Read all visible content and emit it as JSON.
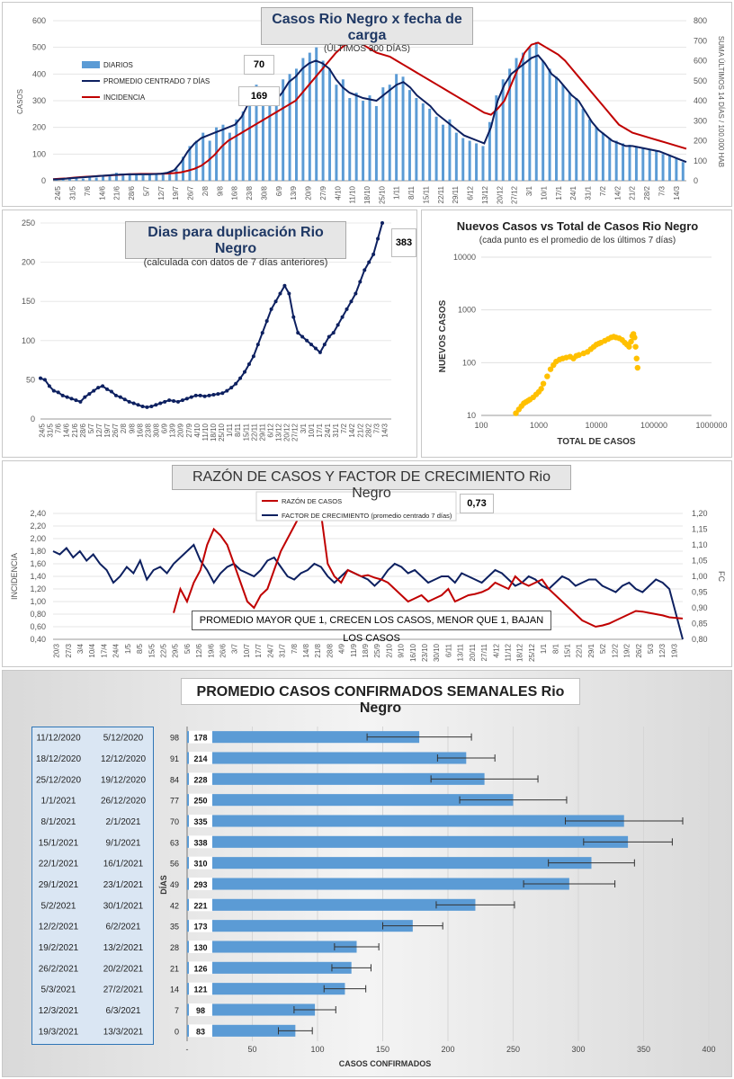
{
  "colors": {
    "navy": "#0d2060",
    "red": "#c00000",
    "blue": "#5b9bd5",
    "gold": "#ffc000"
  },
  "chart_data": [
    {
      "type": "bar",
      "title": "Casos Rio Negro x fecha de carga",
      "subtitle": "(ÚLTIMOS 300 DÍAS)",
      "ylabel": "CASOS",
      "y2label": "SUMA ÚLTIMOS 14 DÍAS / 100.000 HAB",
      "ylim": [
        0,
        600
      ],
      "y2lim": [
        0,
        800
      ],
      "yticks": [
        "0",
        "100",
        "200",
        "300",
        "400",
        "500",
        "600"
      ],
      "y2ticks": [
        "0",
        "100",
        "200",
        "300",
        "400",
        "500",
        "600",
        "700",
        "800"
      ],
      "xticks": [
        "24/5",
        "31/5",
        "7/6",
        "14/6",
        "21/6",
        "28/6",
        "5/7",
        "12/7",
        "19/7",
        "26/7",
        "2/8",
        "9/8",
        "16/8",
        "23/8",
        "30/8",
        "6/9",
        "13/9",
        "20/9",
        "27/9",
        "4/10",
        "11/10",
        "18/10",
        "25/10",
        "1/11",
        "8/11",
        "15/11",
        "22/11",
        "29/11",
        "6/12",
        "13/12",
        "20/12",
        "27/12",
        "3/1",
        "10/1",
        "17/1",
        "24/1",
        "31/1",
        "7/2",
        "14/2",
        "21/2",
        "28/2",
        "7/3",
        "14/3"
      ],
      "legend": [
        "DIARIOS",
        "PROMEDIO CENTRADO 7 DÍAS",
        "INCIDENCIA"
      ],
      "annotations": [
        "70",
        "169"
      ],
      "series": [
        {
          "name": "PROMEDIO CENTRADO 7 DÍAS",
          "values": [
            5,
            6,
            8,
            10,
            12,
            14,
            16,
            18,
            20,
            22,
            23,
            24,
            24,
            24,
            24,
            25,
            26,
            30,
            40,
            70,
            110,
            140,
            160,
            170,
            180,
            190,
            200,
            210,
            240,
            290,
            330,
            340,
            320,
            300,
            330,
            370,
            390,
            420,
            440,
            450,
            440,
            420,
            380,
            350,
            330,
            320,
            310,
            305,
            300,
            320,
            340,
            360,
            370,
            350,
            320,
            300,
            280,
            250,
            230,
            210,
            190,
            170,
            160,
            150,
            140,
            200,
            300,
            360,
            400,
            420,
            440,
            460,
            470,
            440,
            400,
            380,
            350,
            320,
            300,
            260,
            220,
            190,
            170,
            150,
            140,
            130,
            130,
            125,
            120,
            115,
            110,
            100,
            90,
            80,
            70
          ]
        },
        {
          "name": "INCIDENCIA",
          "values": [
            8,
            10,
            12,
            15,
            18,
            20,
            22,
            24,
            26,
            28,
            30,
            32,
            33,
            34,
            34,
            34,
            35,
            36,
            38,
            42,
            50,
            60,
            75,
            100,
            130,
            170,
            200,
            220,
            240,
            260,
            280,
            300,
            320,
            340,
            360,
            380,
            400,
            440,
            480,
            520,
            560,
            600,
            640,
            670,
            690,
            700,
            680,
            660,
            640,
            630,
            620,
            600,
            580,
            560,
            540,
            520,
            500,
            480,
            460,
            440,
            420,
            400,
            380,
            360,
            340,
            330,
            360,
            400,
            480,
            560,
            640,
            680,
            690,
            670,
            650,
            630,
            600,
            560,
            520,
            480,
            440,
            400,
            360,
            320,
            280,
            260,
            240,
            230,
            220,
            210,
            200,
            190,
            180,
            170,
            160
          ]
        },
        {
          "name": "DIARIOS",
          "values": [
            5,
            10,
            6,
            15,
            8,
            18,
            12,
            20,
            22,
            30,
            25,
            28,
            24,
            20,
            26,
            22,
            30,
            28,
            45,
            90,
            130,
            150,
            180,
            150,
            200,
            210,
            180,
            230,
            260,
            320,
            360,
            300,
            340,
            290,
            380,
            400,
            420,
            460,
            480,
            500,
            450,
            420,
            360,
            380,
            310,
            330,
            300,
            320,
            280,
            350,
            360,
            400,
            390,
            340,
            310,
            290,
            270,
            240,
            210,
            230,
            180,
            160,
            150,
            140,
            130,
            220,
            320,
            380,
            420,
            460,
            480,
            500,
            520,
            450,
            420,
            390,
            360,
            330,
            310,
            270,
            230,
            200,
            180,
            160,
            150,
            140,
            135,
            130,
            125,
            115,
            112,
            100,
            95,
            85,
            70
          ]
        }
      ]
    },
    {
      "type": "line",
      "title": "Dias para duplicación Rio Negro",
      "subtitle": "(calculada con datos de 7 días anteriores)",
      "annotation": "383",
      "ylim": [
        0,
        250
      ],
      "yticks": [
        "0",
        "50",
        "100",
        "150",
        "200",
        "250"
      ],
      "xticks": [
        "24/5",
        "31/5",
        "7/6",
        "14/6",
        "21/6",
        "28/6",
        "5/7",
        "12/7",
        "19/7",
        "26/7",
        "2/8",
        "9/8",
        "16/8",
        "23/8",
        "30/8",
        "6/9",
        "13/9",
        "20/9",
        "27/9",
        "4/10",
        "11/10",
        "18/10",
        "25/10",
        "1/11",
        "8/11",
        "15/11",
        "22/11",
        "29/11",
        "6/12",
        "13/12",
        "20/12",
        "27/12",
        "3/1",
        "10/1",
        "17/1",
        "24/1",
        "31/1",
        "7/2",
        "14/2",
        "21/2",
        "28/2",
        "7/3",
        "14/3"
      ],
      "series": [
        {
          "name": "",
          "values": [
            52,
            50,
            42,
            36,
            34,
            30,
            28,
            26,
            24,
            22,
            28,
            32,
            36,
            40,
            42,
            38,
            35,
            30,
            28,
            25,
            22,
            20,
            18,
            16,
            15,
            16,
            18,
            20,
            22,
            24,
            23,
            22,
            24,
            26,
            28,
            30,
            30,
            29,
            30,
            31,
            32,
            33,
            36,
            40,
            45,
            52,
            60,
            70,
            80,
            95,
            110,
            125,
            140,
            150,
            160,
            170,
            160,
            130,
            110,
            105,
            100,
            95,
            90,
            85,
            95,
            105,
            110,
            120,
            130,
            140,
            150,
            160,
            175,
            190,
            200,
            210,
            230,
            250
          ]
        }
      ]
    },
    {
      "type": "scatter",
      "title": "Nuevos Casos vs Total de Casos Rio Negro",
      "subtitle": "(cada punto es el promedio de los últimos 7 días)",
      "xlabel": "TOTAL DE CASOS",
      "ylabel": "NUEVOS CASOS",
      "xscale": "log",
      "yscale": "log",
      "xlim": [
        100,
        1000000
      ],
      "ylim": [
        10,
        10000
      ],
      "xticks": [
        "100",
        "1000",
        "10000",
        "100000",
        "1000000"
      ],
      "yticks": [
        "10",
        "100",
        "1000",
        "10000"
      ],
      "x": [
        400,
        450,
        500,
        550,
        600,
        650,
        700,
        800,
        900,
        1000,
        1100,
        1200,
        1400,
        1600,
        1800,
        2000,
        2300,
        2600,
        3000,
        3500,
        4000,
        4500,
        5000,
        6000,
        7000,
        8000,
        9000,
        10000,
        11000,
        12000,
        14000,
        16000,
        18000,
        20000,
        22000,
        25000,
        28000,
        31000,
        34000,
        37000,
        40000,
        42000,
        44000,
        46000,
        48000,
        50000,
        52000
      ],
      "y": [
        11,
        13,
        15,
        17,
        18,
        19,
        20,
        22,
        25,
        28,
        32,
        40,
        55,
        75,
        90,
        105,
        115,
        120,
        125,
        130,
        120,
        135,
        140,
        150,
        160,
        180,
        200,
        220,
        230,
        240,
        260,
        280,
        300,
        310,
        300,
        290,
        270,
        240,
        220,
        200,
        250,
        320,
        350,
        300,
        200,
        120,
        80
      ]
    },
    {
      "type": "line",
      "title": "RAZÓN DE CASOS Y FACTOR DE CRECIMIENTO Rio Negro",
      "ylabel": "INCIDENCIA",
      "y2label": "FC",
      "ylim": [
        0.4,
        2.4
      ],
      "y2lim": [
        0.8,
        1.2
      ],
      "yticks": [
        "0,40",
        "0,60",
        "0,80",
        "1,00",
        "1,20",
        "1,40",
        "1,60",
        "1,80",
        "2,00",
        "2,20",
        "2,40"
      ],
      "y2ticks": [
        "0,80",
        "0,85",
        "0,90",
        "0,95",
        "1,00",
        "1,05",
        "1,10",
        "1,15",
        "1,20"
      ],
      "xticks": [
        "20/3",
        "27/3",
        "3/4",
        "10/4",
        "17/4",
        "24/4",
        "1/5",
        "8/5",
        "15/5",
        "22/5",
        "29/5",
        "5/6",
        "12/6",
        "19/6",
        "26/6",
        "3/7",
        "10/7",
        "17/7",
        "24/7",
        "31/7",
        "7/8",
        "14/8",
        "21/8",
        "28/8",
        "4/9",
        "11/9",
        "18/9",
        "25/9",
        "2/10",
        "9/10",
        "16/10",
        "23/10",
        "30/10",
        "6/11",
        "13/11",
        "20/11",
        "27/11",
        "4/12",
        "11/12",
        "18/12",
        "25/12",
        "1/1",
        "8/1",
        "15/1",
        "22/1",
        "29/1",
        "5/2",
        "12/2",
        "19/2",
        "26/2",
        "5/3",
        "12/3",
        "19/3"
      ],
      "legend": [
        "RAZÓN DE CASOS",
        "FACTOR DE CRECIMIENTO (promedio centrado 7 días)"
      ],
      "annotation": "0,73",
      "note": "PROMEDIO MAYOR QUE 1, CRECEN LOS CASOS, MENOR QUE 1, BAJAN LOS CASOS",
      "series": [
        {
          "name": "FACTOR DE CRECIMIENTO (promedio centrado 7 días)",
          "values": [
            1.08,
            1.07,
            1.09,
            1.06,
            1.08,
            1.05,
            1.07,
            1.04,
            1.02,
            0.98,
            1.0,
            1.03,
            1.01,
            1.05,
            0.99,
            1.02,
            1.03,
            1.01,
            1.04,
            1.06,
            1.08,
            1.1,
            1.05,
            1.02,
            0.98,
            1.01,
            1.03,
            1.04,
            1.02,
            1.01,
            1.0,
            1.02,
            1.05,
            1.06,
            1.03,
            1.0,
            0.99,
            1.01,
            1.02,
            1.04,
            1.03,
            1.0,
            0.98,
            1.0,
            1.02,
            1.01,
            1.0,
            0.99,
            0.97,
            0.99,
            1.02,
            1.04,
            1.03,
            1.01,
            1.02,
            1.0,
            0.98,
            0.99,
            1.0,
            1.0,
            0.98,
            1.01,
            1.0,
            0.99,
            0.98,
            1.0,
            1.02,
            1.01,
            0.99,
            0.97,
            0.98,
            1.0,
            0.99,
            0.97,
            0.96,
            0.98,
            1.0,
            0.99,
            0.97,
            0.98,
            0.99,
            0.99,
            0.97,
            0.96,
            0.95,
            0.97,
            0.98,
            0.96,
            0.95,
            0.97,
            0.99,
            0.98,
            0.96,
            0.88,
            0.8
          ]
        },
        {
          "name": "RAZÓN DE CASOS",
          "values": [
            null,
            null,
            null,
            null,
            null,
            null,
            null,
            null,
            null,
            null,
            null,
            null,
            null,
            null,
            null,
            null,
            null,
            null,
            0.82,
            1.2,
            1.0,
            1.3,
            1.5,
            1.9,
            2.15,
            2.05,
            1.9,
            1.6,
            1.3,
            1.0,
            0.9,
            1.1,
            1.2,
            1.5,
            1.8,
            2.0,
            2.2,
            2.4,
            2.4,
            2.4,
            2.4,
            1.6,
            1.4,
            1.3,
            1.5,
            1.45,
            1.4,
            1.42,
            1.38,
            1.35,
            1.3,
            1.2,
            1.1,
            1.0,
            1.05,
            1.1,
            1.0,
            1.05,
            1.1,
            1.2,
            1.0,
            1.05,
            1.1,
            1.12,
            1.15,
            1.2,
            1.3,
            1.25,
            1.2,
            1.4,
            1.3,
            1.25,
            1.3,
            1.35,
            1.2,
            1.1,
            1.0,
            0.9,
            0.8,
            0.7,
            0.65,
            0.6,
            0.62,
            0.65,
            0.7,
            0.75,
            0.8,
            0.85,
            0.84,
            0.82,
            0.8,
            0.78,
            0.75,
            0.74,
            0.73
          ]
        }
      ]
    },
    {
      "type": "bar",
      "title": "PROMEDIO CASOS CONFIRMADOS SEMANALES Rio Negro",
      "xlabel": "CASOS CONFIRMADOS",
      "ylabel": "DÍAS",
      "xlim": [
        0,
        400
      ],
      "xticks": [
        "-",
        "50",
        "100",
        "150",
        "200",
        "250",
        "300",
        "350",
        "400"
      ],
      "rows": [
        {
          "end": "11/12/2020",
          "start": "5/12/2020",
          "days": "98",
          "value": 178,
          "err_lo": 138,
          "err_hi": 218
        },
        {
          "end": "18/12/2020",
          "start": "12/12/2020",
          "days": "91",
          "value": 214,
          "err_lo": 192,
          "err_hi": 236
        },
        {
          "end": "25/12/2020",
          "start": "19/12/2020",
          "days": "84",
          "value": 228,
          "err_lo": 187,
          "err_hi": 269
        },
        {
          "end": "1/1/2021",
          "start": "26/12/2020",
          "days": "77",
          "value": 250,
          "err_lo": 209,
          "err_hi": 291
        },
        {
          "end": "8/1/2021",
          "start": "2/1/2021",
          "days": "70",
          "value": 335,
          "err_lo": 290,
          "err_hi": 380
        },
        {
          "end": "15/1/2021",
          "start": "9/1/2021",
          "days": "63",
          "value": 338,
          "err_lo": 304,
          "err_hi": 372
        },
        {
          "end": "22/1/2021",
          "start": "16/1/2021",
          "days": "56",
          "value": 310,
          "err_lo": 277,
          "err_hi": 343
        },
        {
          "end": "29/1/2021",
          "start": "23/1/2021",
          "days": "49",
          "value": 293,
          "err_lo": 258,
          "err_hi": 328
        },
        {
          "end": "5/2/2021",
          "start": "30/1/2021",
          "days": "42",
          "value": 221,
          "err_lo": 191,
          "err_hi": 251
        },
        {
          "end": "12/2/2021",
          "start": "6/2/2021",
          "days": "35",
          "value": 173,
          "err_lo": 150,
          "err_hi": 196
        },
        {
          "end": "19/2/2021",
          "start": "13/2/2021",
          "days": "28",
          "value": 130,
          "err_lo": 113,
          "err_hi": 147
        },
        {
          "end": "26/2/2021",
          "start": "20/2/2021",
          "days": "21",
          "value": 126,
          "err_lo": 111,
          "err_hi": 141
        },
        {
          "end": "5/3/2021",
          "start": "27/2/2021",
          "days": "14",
          "value": 121,
          "err_lo": 105,
          "err_hi": 137
        },
        {
          "end": "12/3/2021",
          "start": "6/3/2021",
          "days": "7",
          "value": 98,
          "err_lo": 82,
          "err_hi": 114
        },
        {
          "end": "19/3/2021",
          "start": "13/3/2021",
          "days": "0",
          "value": 83,
          "err_lo": 70,
          "err_hi": 96
        }
      ]
    }
  ]
}
